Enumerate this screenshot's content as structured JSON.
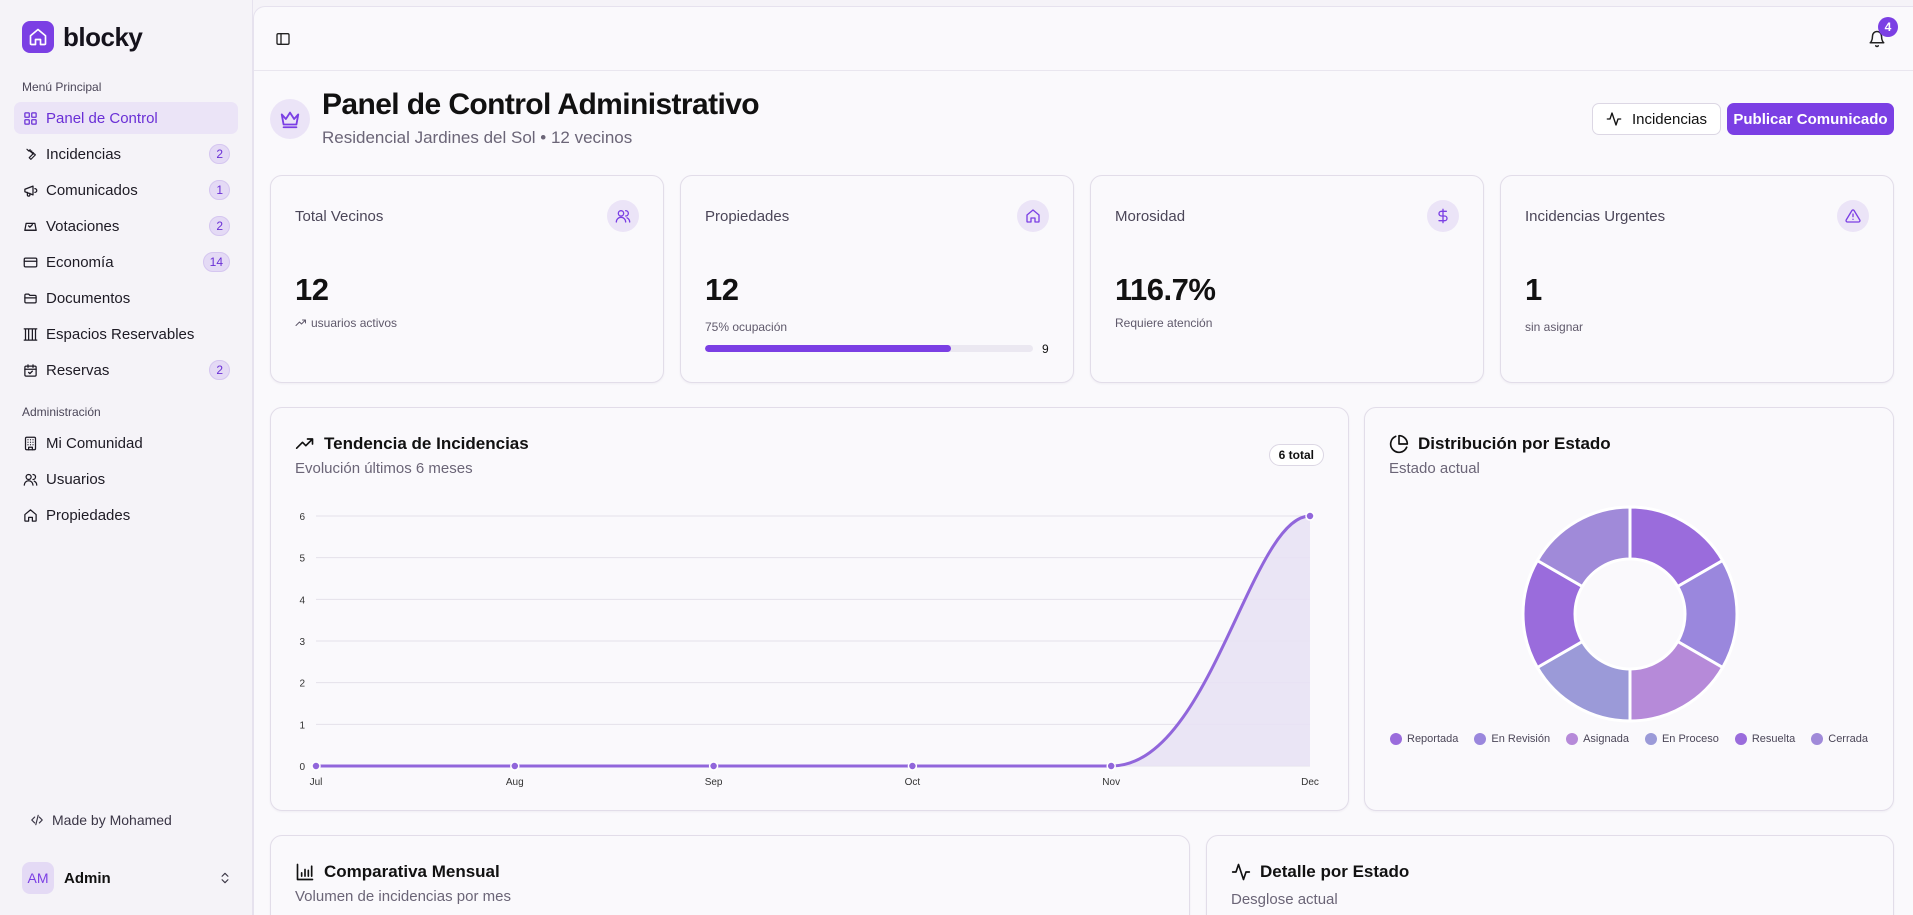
{
  "brand": {
    "name": "blocky"
  },
  "sidebar": {
    "main_label": "Menú Principal",
    "admin_label": "Administración",
    "main_items": [
      {
        "label": "Panel de Control",
        "icon": "dashboard-grid-icon",
        "badge": "",
        "active": true
      },
      {
        "label": "Incidencias",
        "icon": "wrench-icon",
        "badge": "2"
      },
      {
        "label": "Comunicados",
        "icon": "megaphone-icon",
        "badge": "1"
      },
      {
        "label": "Votaciones",
        "icon": "vote-box-icon",
        "badge": "2"
      },
      {
        "label": "Economía",
        "icon": "credit-card-icon",
        "badge": "14"
      },
      {
        "label": "Documentos",
        "icon": "folder-icon",
        "badge": ""
      },
      {
        "label": "Espacios Reservables",
        "icon": "columns-icon",
        "badge": ""
      },
      {
        "label": "Reservas",
        "icon": "calendar-check-icon",
        "badge": "2"
      }
    ],
    "admin_items": [
      {
        "label": "Mi Comunidad",
        "icon": "building-icon"
      },
      {
        "label": "Usuarios",
        "icon": "users-icon"
      },
      {
        "label": "Propiedades",
        "icon": "home-icon"
      }
    ],
    "made_by": "Made by Mohamed",
    "user": {
      "initials": "AM",
      "name": "Admin"
    }
  },
  "topbar": {
    "notification_count": "4"
  },
  "header": {
    "title": "Panel de Control Administrativo",
    "subtitle": "Residencial Jardines del Sol • 12 vecinos",
    "incidencias_button": "Incidencias",
    "publish_button": "Publicar Comunicado"
  },
  "stats": [
    {
      "label": "Total Vecinos",
      "value": "12",
      "note": "usuarios activos",
      "icon": "users-icon"
    },
    {
      "label": "Propiedades",
      "value": "12",
      "note": "75% ocupación",
      "progress": 0.75,
      "progress_value": "9",
      "icon": "home-icon"
    },
    {
      "label": "Morosidad",
      "value": "116.7%",
      "note": "Requiere atención",
      "icon": "dollar-icon"
    },
    {
      "label": "Incidencias Urgentes",
      "value": "1",
      "note": "sin asignar",
      "icon": "alert-triangle-icon"
    }
  ],
  "trend": {
    "title": "Tendencia de Incidencias",
    "subtitle": "Evolución últimos 6 meses",
    "total_pill": "6 total"
  },
  "distribution": {
    "title": "Distribución por Estado",
    "subtitle": "Estado actual"
  },
  "monthly": {
    "title": "Comparativa Mensual",
    "subtitle": "Volumen de incidencias por mes"
  },
  "detail": {
    "title": "Detalle por Estado",
    "subtitle": "Desglose actual"
  },
  "colors": {
    "accent": "#7b3fe4",
    "line": "#9166db",
    "area": "#e8e2f4"
  },
  "chart_data": [
    {
      "type": "area",
      "x": [
        "Jul",
        "Aug",
        "Sep",
        "Oct",
        "Nov",
        "Dec"
      ],
      "series": [
        {
          "values": [
            0,
            0,
            0,
            0,
            0,
            6
          ]
        }
      ],
      "yticks": [
        0,
        1,
        2,
        3,
        4,
        5,
        6
      ],
      "ylim": [
        0,
        6
      ],
      "grid": true
    },
    {
      "type": "pie",
      "donut": true,
      "labels": [
        "Reportada",
        "En Revisión",
        "Asignada",
        "En Proceso",
        "Resuelta",
        "Cerrada"
      ],
      "values": [
        1,
        1,
        1,
        1,
        1,
        1
      ],
      "colors": [
        "#9a6cdc",
        "#9a87dd",
        "#b68ad9",
        "#9b9ad8",
        "#9a6cdc",
        "#a08ad9"
      ],
      "legend": "bottom"
    }
  ]
}
